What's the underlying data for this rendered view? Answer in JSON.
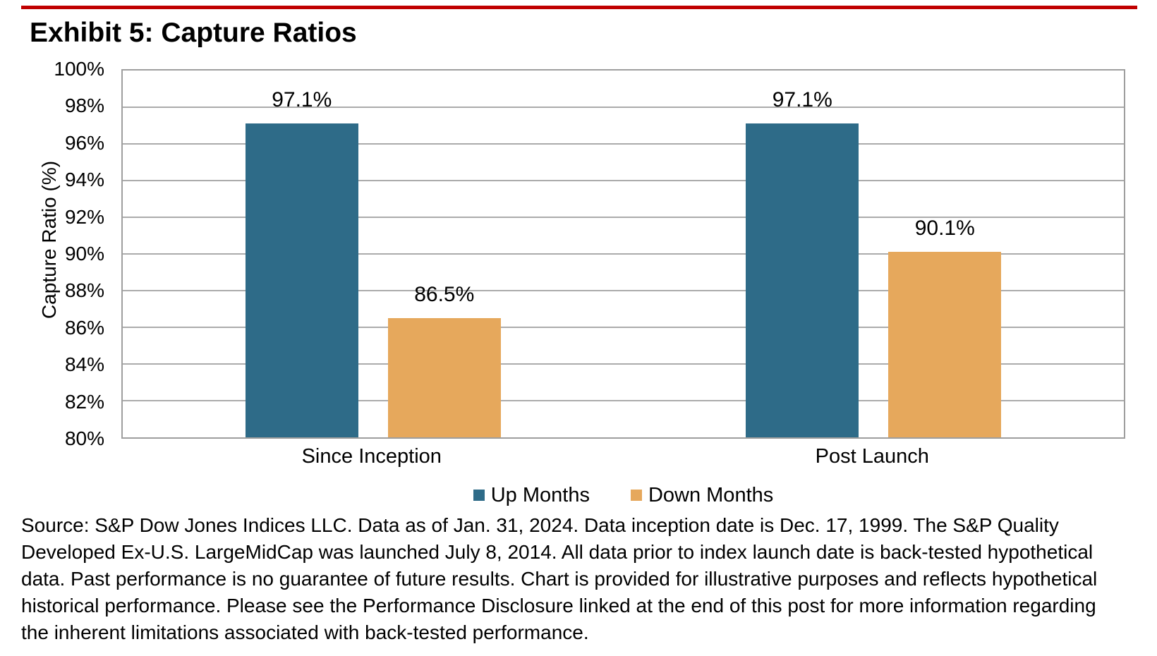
{
  "title": "Exhibit 5: Capture Ratios",
  "colors": {
    "accent_rule": "#C00000",
    "plot_border": "#9E9E9E",
    "gridline": "#ABABAB",
    "background": "#FFFFFF",
    "up_months": "#2E6B88",
    "down_months": "#E6A85C"
  },
  "chart_data": {
    "type": "bar",
    "categories": [
      "Since Inception",
      "Post Launch"
    ],
    "series": [
      {
        "name": "Up Months",
        "color": "#2E6B88",
        "values": [
          97.1,
          97.1
        ],
        "value_labels": [
          "97.1%",
          "97.1%"
        ]
      },
      {
        "name": "Down Months",
        "color": "#E6A85C",
        "values": [
          86.5,
          90.1
        ],
        "value_labels": [
          "86.5%",
          "90.1%"
        ]
      }
    ],
    "ylabel": "Capture Ratio (%)",
    "xlabel": "",
    "ylim": [
      80,
      100
    ],
    "ytick_step": 2,
    "ytick_labels": [
      "100%",
      "98%",
      "96%",
      "94%",
      "92%",
      "90%",
      "88%",
      "86%",
      "84%",
      "82%",
      "80%"
    ],
    "grid": true,
    "legend": [
      "Up Months",
      "Down Months"
    ],
    "legend_position": "bottom"
  },
  "source_note": "Source: S&P Dow Jones Indices LLC. Data as of Jan. 31, 2024. Data inception date is Dec. 17, 1999. The S&P Quality Developed Ex-U.S. LargeMidCap was launched July 8, 2014. All data prior to index launch date is back-tested hypothetical data. Past performance is no guarantee of future results. Chart is provided for illustrative purposes and reflects hypothetical historical performance. Please see the Performance Disclosure linked at the end of this post for more information regarding the inherent limitations associated with back-tested performance."
}
